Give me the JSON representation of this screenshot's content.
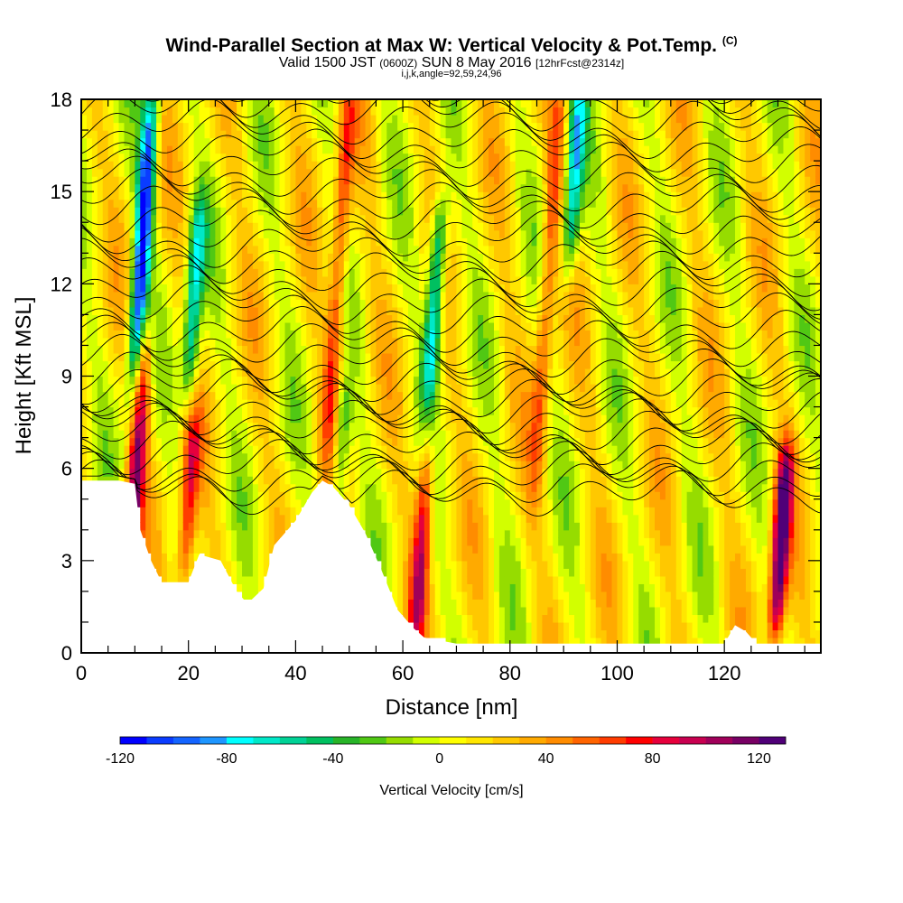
{
  "title": {
    "main": "Wind-Parallel Section at Max W: Vertical Velocity & Pot.Temp.",
    "copyright": "(C)",
    "valid_prefix": "Valid 1500 JST",
    "valid_zulu": "(0600Z)",
    "valid_date": "SUN 8 May 2016",
    "forecast": "[12hrFcst@2314z]",
    "indices": "i,j,k,angle=92,59,24,96"
  },
  "chart_data": {
    "type": "heatmap",
    "xlabel": "Distance [nm]",
    "ylabel": "Height [Kft MSL]",
    "xlim": [
      0,
      138
    ],
    "ylim": [
      0,
      18
    ],
    "x_ticks": [
      "0",
      "20",
      "40",
      "60",
      "80",
      "100",
      "120"
    ],
    "y_ticks": [
      "0",
      "3",
      "6",
      "9",
      "12",
      "15",
      "18"
    ],
    "colorbar": {
      "title": "Vertical Velocity [cm/s]",
      "range": [
        -120,
        130
      ],
      "tick_labels": [
        "-120",
        "-80",
        "-40",
        "0",
        "40",
        "80",
        "120"
      ],
      "colors": [
        "#0000ff",
        "#0a3cff",
        "#1464ff",
        "#1e96ff",
        "#00ffff",
        "#00e8c8",
        "#00d296",
        "#00c060",
        "#28b428",
        "#50c814",
        "#96dc00",
        "#d2ff00",
        "#ffff00",
        "#ffe600",
        "#ffc800",
        "#ffaa00",
        "#ff8c00",
        "#ff6400",
        "#ff3c00",
        "#ff0000",
        "#e6003c",
        "#c80050",
        "#a0005a",
        "#780064",
        "#500078"
      ]
    },
    "terrain_kft": [
      [
        0,
        5.6
      ],
      [
        7,
        5.6
      ],
      [
        10,
        5.5
      ],
      [
        11,
        4.0
      ],
      [
        13,
        3.0
      ],
      [
        15,
        2.3
      ],
      [
        20,
        2.3
      ],
      [
        22,
        3.2
      ],
      [
        26,
        3.0
      ],
      [
        29,
        2.0
      ],
      [
        31,
        1.6
      ],
      [
        34,
        2.1
      ],
      [
        36,
        3.5
      ],
      [
        40,
        4.3
      ],
      [
        43,
        5.2
      ],
      [
        45,
        5.6
      ],
      [
        47,
        5.4
      ],
      [
        50,
        4.8
      ],
      [
        53,
        3.9
      ],
      [
        56,
        2.7
      ],
      [
        59,
        1.4
      ],
      [
        62,
        0.8
      ],
      [
        64,
        0.5
      ],
      [
        70,
        0.3
      ],
      [
        82,
        0.3
      ],
      [
        120,
        0.3
      ],
      [
        122,
        0.9
      ],
      [
        124,
        0.7
      ],
      [
        126,
        0.3
      ],
      [
        138,
        0.3
      ]
    ],
    "updrafts": [
      {
        "x": 10.5,
        "w": 90,
        "height_range": [
          3,
          10
        ]
      },
      {
        "x": 20.0,
        "w": 70,
        "height_range": [
          2.5,
          7
        ]
      },
      {
        "x": 48.0,
        "w": 60,
        "height_range": [
          7,
          18
        ]
      },
      {
        "x": 63.5,
        "w": 80,
        "height_range": [
          1,
          6
        ]
      },
      {
        "x": 87.0,
        "w": 50,
        "height_range": [
          6,
          18
        ]
      },
      {
        "x": 130.5,
        "w": 125,
        "height_range": [
          1,
          6
        ]
      }
    ],
    "downdrafts": [
      {
        "x": 11.5,
        "w": -120,
        "height_range": [
          9,
          18
        ]
      },
      {
        "x": 21.0,
        "w": -80,
        "height_range": [
          9,
          14
        ]
      },
      {
        "x": 66.0,
        "w": -90,
        "height_range": [
          9,
          14
        ]
      },
      {
        "x": 92.0,
        "w": -80,
        "height_range": [
          13,
          18
        ]
      },
      {
        "x": 48.5,
        "w": -50,
        "height_range": [
          5,
          8
        ]
      }
    ]
  }
}
